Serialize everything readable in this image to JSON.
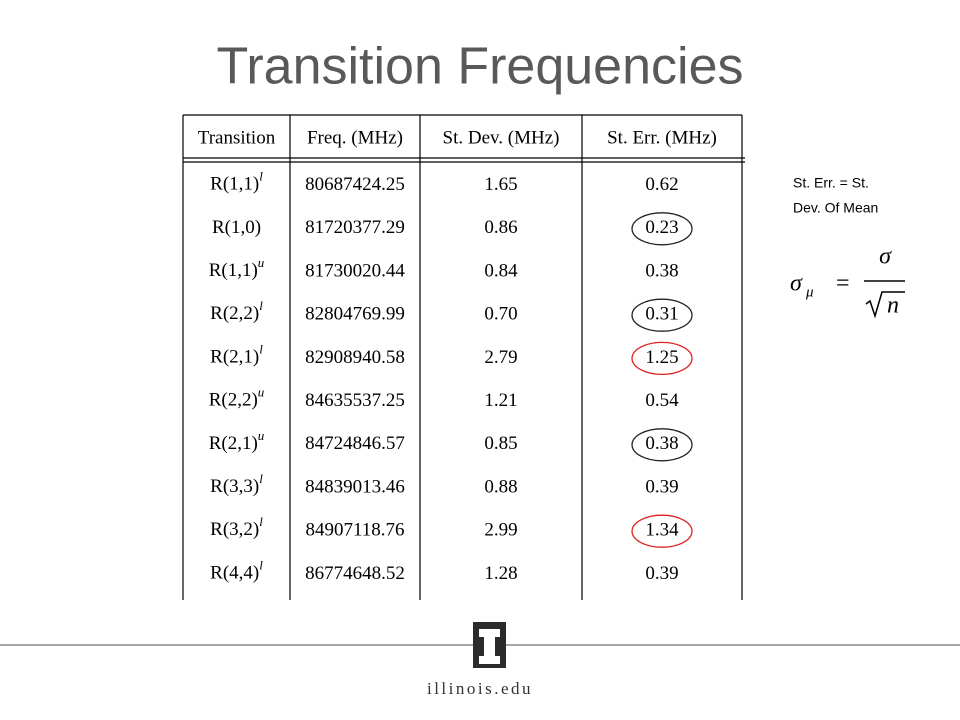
{
  "title": "Transition Frequencies",
  "table": {
    "headers": [
      "Transition",
      "Freq. (MHz)",
      "St. Dev. (MHz)",
      "St. Err. (MHz)"
    ],
    "rows": [
      [
        {
          "name": "R(1,1)",
          "sup": "l"
        },
        "80687424.25",
        "1.65",
        "0.62"
      ],
      [
        {
          "name": "R(1,0)"
        },
        "81720377.29",
        "0.86",
        "0.23"
      ],
      [
        {
          "name": "R(1,1)",
          "sup": "u"
        },
        "81730020.44",
        "0.84",
        "0.38"
      ],
      [
        {
          "name": "R(2,2)",
          "sup": "l"
        },
        "82804769.99",
        "0.70",
        "0.31"
      ],
      [
        {
          "name": "R(2,1)",
          "sup": "l"
        },
        "82908940.58",
        "2.79",
        "1.25"
      ],
      [
        {
          "name": "R(2,2)",
          "sup": "u"
        },
        "84635537.25",
        "1.21",
        "0.54"
      ],
      [
        {
          "name": "R(2,1)",
          "sup": "u"
        },
        "84724846.57",
        "0.85",
        "0.38"
      ],
      [
        {
          "name": "R(3,3)",
          "sup": "l"
        },
        "84839013.46",
        "0.88",
        "0.39"
      ],
      [
        {
          "name": "R(3,2)",
          "sup": "l"
        },
        "84907118.76",
        "2.99",
        "1.34"
      ],
      [
        {
          "name": "R(4,4)",
          "sup": "l"
        },
        "86774648.52",
        "1.28",
        "0.39"
      ]
    ],
    "circled": [
      {
        "row": 1,
        "color": "#222222"
      },
      {
        "row": 3,
        "color": "#222222"
      },
      {
        "row": 4,
        "color": "#e02020"
      },
      {
        "row": 6,
        "color": "#222222"
      },
      {
        "row": 8,
        "color": "#e02020"
      }
    ]
  },
  "note": [
    "St. Err. = St.",
    "Dev. Of Mean"
  ],
  "formula": {
    "lhs": "σ",
    "lhs_sub": "μ",
    "eq": "=",
    "numerator": "σ",
    "denominator": "n"
  },
  "footer": "illinois.edu"
}
